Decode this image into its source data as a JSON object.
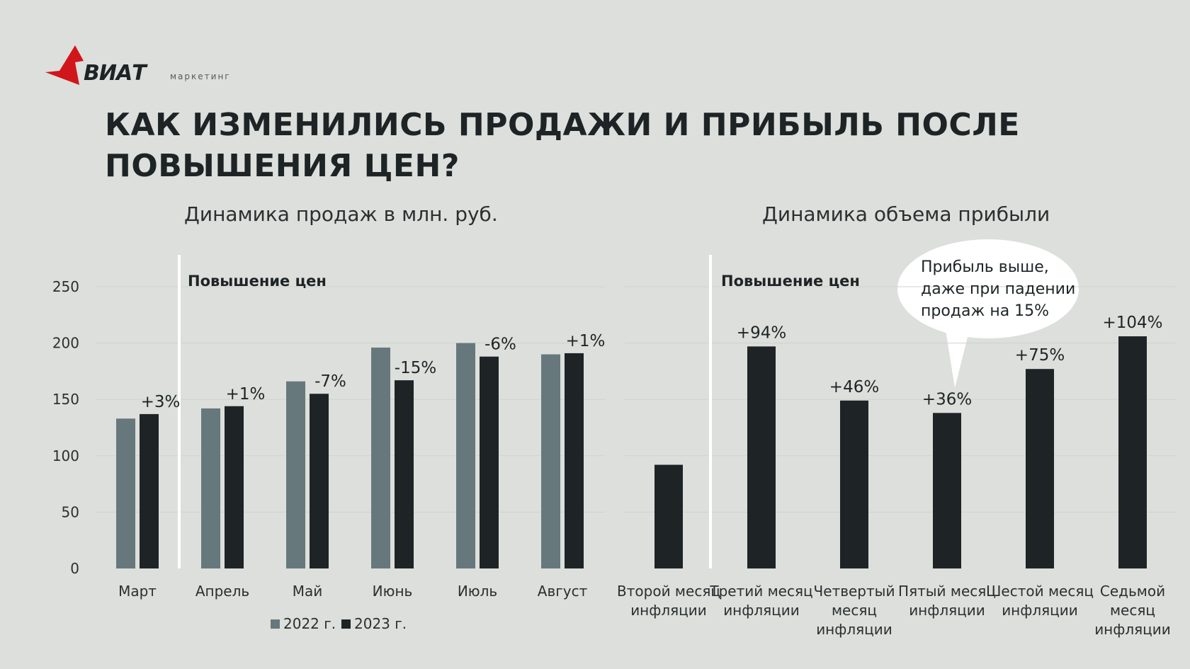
{
  "brand": {
    "name": "ВИАТ",
    "tagline": "маркетинг",
    "accent_color": "#d0161b"
  },
  "title": "КАК ИЗМЕНИЛИСЬ ПРОДАЖИ И ПРИБЫЛЬ ПОСЛЕ ПОВЫШЕНИЯ ЦЕН?",
  "callout": "Прибыль выше, даже при падении продаж на 15%",
  "chart_data": [
    {
      "type": "bar",
      "title": "Динамика продаж в млн. руб.",
      "annotation": "Повышение цен",
      "categories": [
        "Март",
        "Апрель",
        "Май",
        "Июнь",
        "Июль",
        "Август"
      ],
      "series": [
        {
          "name": "2022 г.",
          "color": "#66787c",
          "values": [
            133,
            142,
            166,
            196,
            200,
            190
          ]
        },
        {
          "name": "2023 г.",
          "color": "#1e2426",
          "values": [
            137,
            144,
            155,
            167,
            188,
            191
          ]
        }
      ],
      "data_labels": [
        "+3%",
        "+1%",
        "-7%",
        "-15%",
        "-6%",
        "+1%"
      ],
      "ylim": [
        0,
        250
      ],
      "yticks": [
        0,
        50,
        100,
        150,
        200,
        250
      ],
      "grid": true,
      "legend": "bottom"
    },
    {
      "type": "bar",
      "title": "Динамика объема прибыли",
      "annotation": "Повышение цен",
      "categories": [
        "Второй месяц инфляции",
        "Третий месяц инфляции",
        "Четвертый месяц инфляции",
        "Пятый месяц инфляции",
        "Шестой месяц инфляции",
        "Седьмой месяц инфляции"
      ],
      "series": [
        {
          "color": "#1e2426",
          "values": [
            92,
            197,
            149,
            138,
            177,
            206
          ]
        }
      ],
      "data_labels": [
        "",
        "+94%",
        "+46%",
        "+36%",
        "+75%",
        "+104%"
      ],
      "ylim": [
        0,
        250
      ],
      "grid": true,
      "legend": "none"
    }
  ]
}
